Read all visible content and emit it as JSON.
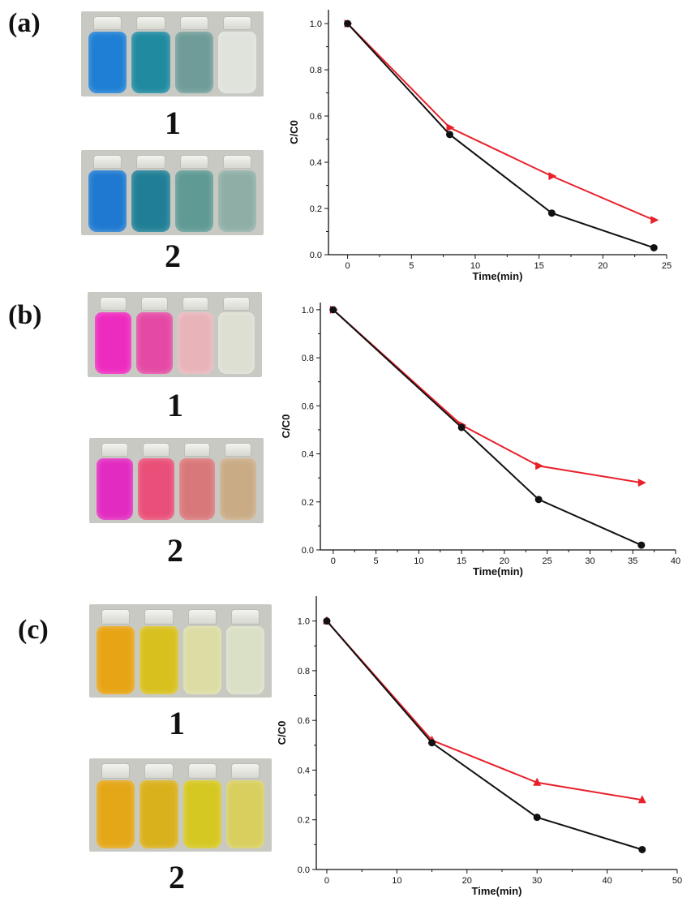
{
  "panels": [
    {
      "letter": "(a)",
      "photo1": {
        "label": "1",
        "colors": [
          "#1e7fd4",
          "#1f8aa0",
          "#6f9c98",
          "#dfe3dc"
        ]
      },
      "photo2": {
        "label": "2",
        "colors": [
          "#1f79d0",
          "#207f96",
          "#5f9a94",
          "#8fafa6"
        ]
      }
    },
    {
      "letter": "(b)",
      "photo1": {
        "label": "1",
        "colors": [
          "#ee2bbf",
          "#e44aa5",
          "#e8b4ba",
          "#dcdfd2"
        ]
      },
      "photo2": {
        "label": "2",
        "colors": [
          "#e22bc0",
          "#e94f78",
          "#d9787a",
          "#c9ac86"
        ]
      }
    },
    {
      "letter": "(c)",
      "photo1": {
        "label": "1",
        "colors": [
          "#e7a414",
          "#d8c01e",
          "#dcdca4",
          "#d9e0c5"
        ]
      },
      "photo2": {
        "label": "2",
        "colors": [
          "#e4a718",
          "#d9b11d",
          "#d6c822",
          "#d8cf5e"
        ]
      }
    }
  ],
  "chart_data": [
    {
      "type": "line",
      "xlabel": "Time(min)",
      "ylabel": "C/C0",
      "xlim": [
        -1.5,
        25
      ],
      "ylim": [
        0,
        1.06
      ],
      "xticks": [
        "0",
        "5",
        "10",
        "15",
        "20",
        "25"
      ],
      "yticks": [
        "0.0",
        "0.2",
        "0.4",
        "0.6",
        "0.8",
        "1.0"
      ],
      "series": [
        {
          "color": "#e8202a",
          "marker": "triangle-right",
          "x": [
            0,
            8,
            16,
            24
          ],
          "y": [
            1.0,
            0.55,
            0.34,
            0.15
          ]
        },
        {
          "color": "#111111",
          "marker": "circle",
          "x": [
            0,
            8,
            16,
            24
          ],
          "y": [
            1.0,
            0.52,
            0.18,
            0.03
          ]
        }
      ]
    },
    {
      "type": "line",
      "xlabel": "Time(min)",
      "ylabel": "C/C0",
      "xlim": [
        -1.5,
        40
      ],
      "ylim": [
        0,
        1.03
      ],
      "xticks": [
        "0",
        "5",
        "10",
        "15",
        "20",
        "25",
        "30",
        "35",
        "40"
      ],
      "yticks": [
        "0.0",
        "0.2",
        "0.4",
        "0.6",
        "0.8",
        "1.0"
      ],
      "series": [
        {
          "color": "#e8202a",
          "marker": "triangle-right",
          "x": [
            0,
            15,
            24,
            36
          ],
          "y": [
            1.0,
            0.52,
            0.35,
            0.28
          ]
        },
        {
          "color": "#111111",
          "marker": "circle",
          "x": [
            0,
            15,
            24,
            36
          ],
          "y": [
            1.0,
            0.51,
            0.21,
            0.02
          ]
        }
      ]
    },
    {
      "type": "line",
      "xlabel": "Time(min)",
      "ylabel": "C/C0",
      "xlim": [
        -1.5,
        50
      ],
      "ylim": [
        0,
        1.1
      ],
      "xticks": [
        "0",
        "10",
        "20",
        "30",
        "40",
        "50"
      ],
      "yticks": [
        "0.0",
        "0.2",
        "0.4",
        "0.6",
        "0.8",
        "1.0"
      ],
      "series": [
        {
          "color": "#e8202a",
          "marker": "triangle-up",
          "x": [
            0,
            15,
            30,
            45
          ],
          "y": [
            1.0,
            0.52,
            0.35,
            0.28
          ]
        },
        {
          "color": "#111111",
          "marker": "circle",
          "x": [
            0,
            15,
            30,
            45
          ],
          "y": [
            1.0,
            0.51,
            0.21,
            0.08
          ]
        }
      ]
    }
  ]
}
